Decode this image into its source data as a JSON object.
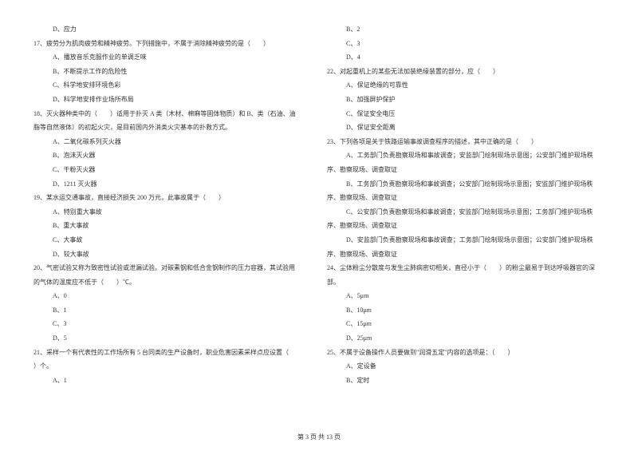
{
  "left_column": [
    {
      "text": "D、应力",
      "indent": "indent-1"
    },
    {
      "text": "17、疲劳分为肌肉疲劳和精神疲劳。下列措施中，不属于消除精神疲劳的是（　　）",
      "indent": "indent-q"
    },
    {
      "text": "A、播放音乐克服作业的单调乏味",
      "indent": "indent-1"
    },
    {
      "text": "B、不断提示工作的危险性",
      "indent": "indent-1"
    },
    {
      "text": "C、科学地安排环境色彩",
      "indent": "indent-1"
    },
    {
      "text": "D、科学地安排作业场所布局",
      "indent": "indent-1"
    },
    {
      "text": "18、灭火器种类中的（　　）适用于扑灭 A 类（木材、棉麻等固体物质）和 B、类（石油、油",
      "indent": "indent-q"
    },
    {
      "text": "脂等自然液体）的初起火灾，是目前国内外消类火灾基本的扑救方式。",
      "indent": "indent-q"
    },
    {
      "text": "A、二氧化碳系列灭火器",
      "indent": "indent-1"
    },
    {
      "text": "B、泡沫灭火器",
      "indent": "indent-1"
    },
    {
      "text": "C、干粉灭火器",
      "indent": "indent-1"
    },
    {
      "text": "D、1211 灭火器",
      "indent": "indent-1"
    },
    {
      "text": "19、某水运交通事故，直接经济损失 200 万元，此事故属于（　　）",
      "indent": "indent-q"
    },
    {
      "text": "A、特别重大事故",
      "indent": "indent-1"
    },
    {
      "text": "B、重大事故",
      "indent": "indent-1"
    },
    {
      "text": "C、大事故",
      "indent": "indent-1"
    },
    {
      "text": "D、较大事故",
      "indent": "indent-1"
    },
    {
      "text": "20、气密试验又称为致密性试验或泄漏试验。对碳素钢和低合金钢制作的压力容器，其试验用",
      "indent": "indent-q"
    },
    {
      "text": "的气体的温度应不低于（　　）℃。",
      "indent": "indent-q"
    },
    {
      "text": "A、0",
      "indent": "indent-1"
    },
    {
      "text": "B、1",
      "indent": "indent-1"
    },
    {
      "text": "C、3",
      "indent": "indent-1"
    },
    {
      "text": "D、5",
      "indent": "indent-1"
    },
    {
      "text": "21、采样一个有代表性的工作场所有 5 台同类的生产设备时，职业危害因素采样点应设置（　",
      "indent": "indent-q"
    },
    {
      "text": "）个。",
      "indent": "indent-q"
    },
    {
      "text": "A、1",
      "indent": "indent-1"
    }
  ],
  "right_column": [
    {
      "text": "B、2",
      "indent": "indent-1"
    },
    {
      "text": "C、3",
      "indent": "indent-1"
    },
    {
      "text": "D、4",
      "indent": "indent-1"
    },
    {
      "text": "22、对起重机上的某些无法加装绝缘装置的部分，应（　　）",
      "indent": "indent-q"
    },
    {
      "text": "A、保证绝缘的可靠性",
      "indent": "indent-1"
    },
    {
      "text": "B、加强屏护保护",
      "indent": "indent-1"
    },
    {
      "text": "C、保证安全电压",
      "indent": "indent-1"
    },
    {
      "text": "D、保证安全距离",
      "indent": "indent-1"
    },
    {
      "text": "23、下列各项是关于铁路运输事故调查程序的描述，其中正确的是（　　）",
      "indent": "indent-q"
    },
    {
      "text": "A、工务部门负责勘察现场和事故调查；安监部门绘制现场示意图；公安部门维护现场秩",
      "indent": "indent-1"
    },
    {
      "text": "序、勘察现场、调查取证",
      "indent": "indent-q"
    },
    {
      "text": "B、工务部门负责勘察现场和事故调查；公安部门绘制现场示意图；安监部门维护现场秩",
      "indent": "indent-1"
    },
    {
      "text": "序、勘察现场、调查取证",
      "indent": "indent-q"
    },
    {
      "text": "C、公安部门负责勘察现场和事故调查；安监部门绘制现场示意图；工务部门维护现场秩",
      "indent": "indent-1"
    },
    {
      "text": "序、勘察现场、调查取证",
      "indent": "indent-q"
    },
    {
      "text": "D、安监部门负责勘察现场和事故调查；工务部门绘制现场示意图；公安部门维护现场秩",
      "indent": "indent-1"
    },
    {
      "text": "序、勘察现场、调查取证",
      "indent": "indent-q"
    },
    {
      "text": "24、尘体粉尘分散度与发生尘肺病密切相关，直径小于（　　）的粉尘最易于到达呼吸器官的深",
      "indent": "indent-q"
    },
    {
      "text": "部。",
      "indent": "indent-q"
    },
    {
      "text": "A、5μm",
      "indent": "indent-1"
    },
    {
      "text": "B、10μm",
      "indent": "indent-1"
    },
    {
      "text": "C、15μm",
      "indent": "indent-1"
    },
    {
      "text": "D、25μm",
      "indent": "indent-1"
    },
    {
      "text": "25、不属于设备操作人员要做到\"润滑五定\"内容的选项是：（　　）",
      "indent": "indent-q"
    },
    {
      "text": "A、定设备",
      "indent": "indent-1"
    },
    {
      "text": "B、定时",
      "indent": "indent-1"
    }
  ],
  "footer": "第 3 页 共 13 页"
}
